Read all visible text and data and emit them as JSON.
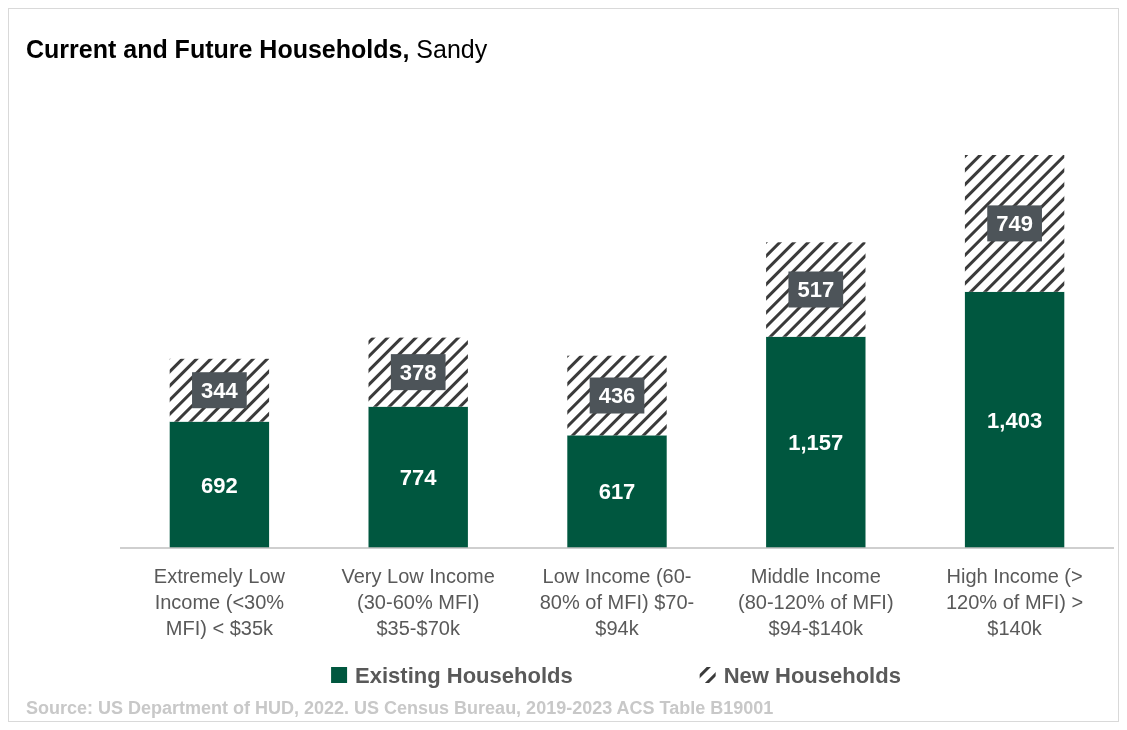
{
  "chart_data": {
    "type": "bar",
    "title": "Current and Future Households,",
    "subtitle": "Sandy",
    "categories": [
      "Extremely Low Income (<30% MFI) < $35k",
      "Very Low Income (30-60% MFI) $35-$70k",
      "Low Income (60-80% of MFI) $70-$94k",
      "Middle Income (80-120% of MFI) $94-$140k",
      "High Income (> 120% of MFI) > $140k"
    ],
    "stacked": true,
    "legend": "bottom",
    "series": [
      {
        "name": "Existing Households",
        "color": "#00573f",
        "values": [
          692,
          774,
          617,
          1157,
          1403
        ],
        "value_labels": [
          "692",
          "774",
          "617",
          "1,157",
          "1,403"
        ]
      },
      {
        "name": "New Households",
        "color": "#3a3a3a",
        "values": [
          344,
          378,
          436,
          517,
          749
        ],
        "value_labels": [
          "344",
          "378",
          "436",
          "517",
          "749"
        ]
      }
    ],
    "annotations": [
      "Source: US Department of HUD, 2022. US Census Bureau, 2019-2023 ACS Table B19001"
    ]
  }
}
